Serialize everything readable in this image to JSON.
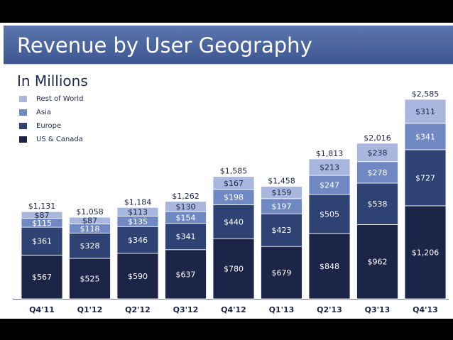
{
  "chart_data": {
    "type": "bar",
    "stacked": true,
    "title": "Revenue by User Geography",
    "subtitle": "In Millions",
    "categories": [
      "Q4'11",
      "Q1'12",
      "Q2'12",
      "Q3'12",
      "Q4'12",
      "Q1'13",
      "Q2'13",
      "Q3'13",
      "Q4'13"
    ],
    "series": [
      {
        "name": "US & Canada",
        "color": "#1c2547",
        "values": [
          567,
          525,
          590,
          637,
          780,
          679,
          848,
          962,
          1206
        ],
        "labels": [
          "$567",
          "$525",
          "$590",
          "$637",
          "$780",
          "$679",
          "$848",
          "$962",
          "$1,206"
        ]
      },
      {
        "name": "Europe",
        "color": "#2e4274",
        "values": [
          361,
          328,
          346,
          341,
          440,
          423,
          505,
          538,
          727
        ],
        "labels": [
          "$361",
          "$328",
          "$346",
          "$341",
          "$440",
          "$423",
          "$505",
          "$538",
          "$727"
        ]
      },
      {
        "name": "Asia",
        "color": "#7189c2",
        "values": [
          115,
          118,
          135,
          154,
          198,
          197,
          247,
          278,
          341
        ],
        "labels": [
          "$115",
          "$118",
          "$135",
          "$154",
          "$198",
          "$197",
          "$247",
          "$278",
          "$341"
        ]
      },
      {
        "name": "Rest of World",
        "color": "#a9b7de",
        "values": [
          87,
          87,
          113,
          130,
          167,
          159,
          213,
          238,
          311
        ],
        "labels": [
          "$87",
          "$87",
          "$113",
          "$130",
          "$167",
          "$159",
          "$213",
          "$238",
          "$311"
        ]
      }
    ],
    "totals": [
      1131,
      1058,
      1184,
      1262,
      1585,
      1458,
      1813,
      2016,
      2585
    ],
    "total_labels": [
      "$1,131",
      "$1,058",
      "$1,184",
      "$1,262",
      "$1,585",
      "$1,458",
      "$1,813",
      "$2,016",
      "$2,585"
    ],
    "ylim": [
      0,
      2585
    ],
    "legend": "top-left",
    "legend_order": [
      "Rest of World",
      "Asia",
      "Europe",
      "US & Canada"
    ],
    "grid": false
  }
}
